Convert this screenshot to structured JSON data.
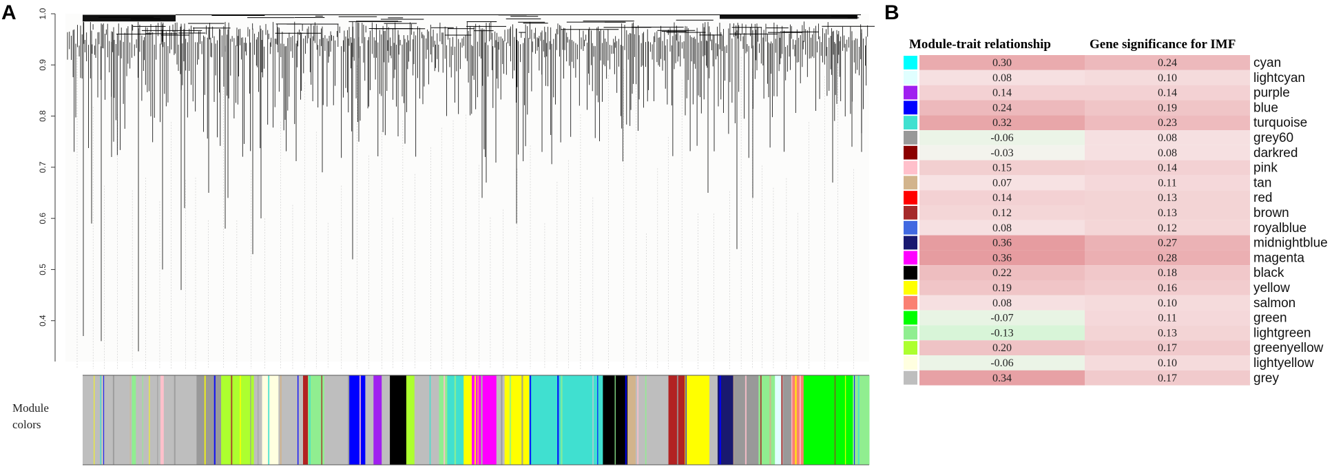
{
  "panels": {
    "a": "A",
    "b": "B"
  },
  "dendrogram": {
    "y_ticks": [
      "1.0",
      "0.9",
      "0.8",
      "0.7",
      "0.6",
      "0.5",
      "0.4"
    ],
    "y_tick_values": [
      1.0,
      0.9,
      0.8,
      0.7,
      0.6,
      0.5,
      0.4
    ],
    "ylim": [
      0.3,
      1.0
    ],
    "color_bar_label_line1": "Module",
    "color_bar_label_line2": "colors",
    "line_color": "#000000",
    "color_bar_segments": [
      {
        "color": "#bebebe",
        "weight": 6
      },
      {
        "color": "#90ee90",
        "weight": 0.5
      },
      {
        "color": "#bebebe",
        "weight": 3
      },
      {
        "color": "#ffc0cb",
        "weight": 0.4
      },
      {
        "color": "#bebebe",
        "weight": 4
      },
      {
        "color": "#999999",
        "weight": 3
      },
      {
        "color": "#adff2f",
        "weight": 4
      },
      {
        "color": "#bebebe",
        "weight": 1
      },
      {
        "color": "#ffffe0",
        "weight": 2
      },
      {
        "color": "#bebebe",
        "weight": 3
      },
      {
        "color": "#b22222",
        "weight": 0.6
      },
      {
        "color": "#90ee90",
        "weight": 2
      },
      {
        "color": "#bebebe",
        "weight": 3
      },
      {
        "color": "#0000ff",
        "weight": 2
      },
      {
        "color": "#bebebe",
        "weight": 1
      },
      {
        "color": "#a020f0",
        "weight": 1
      },
      {
        "color": "#bebebe",
        "weight": 1
      },
      {
        "color": "#000000",
        "weight": 2
      },
      {
        "color": "#adff2f",
        "weight": 1
      },
      {
        "color": "#bebebe",
        "weight": 3
      },
      {
        "color": "#90ee90",
        "weight": 1
      },
      {
        "color": "#40e0d0",
        "weight": 2
      },
      {
        "color": "#ffff00",
        "weight": 1
      },
      {
        "color": "#ff00ff",
        "weight": 3
      },
      {
        "color": "#bebebe",
        "weight": 1
      },
      {
        "color": "#ffff00",
        "weight": 3
      },
      {
        "color": "#40e0d0",
        "weight": 9
      },
      {
        "color": "#000000",
        "weight": 3
      },
      {
        "color": "#d2b48c",
        "weight": 1
      },
      {
        "color": "#bebebe",
        "weight": 4
      },
      {
        "color": "#b22222",
        "weight": 2
      },
      {
        "color": "#ffff00",
        "weight": 3
      },
      {
        "color": "#bebebe",
        "weight": 1
      },
      {
        "color": "#191970",
        "weight": 2
      },
      {
        "color": "#999999",
        "weight": 3
      },
      {
        "color": "#90ee90",
        "weight": 2
      },
      {
        "color": "#e0ffff",
        "weight": 1
      },
      {
        "color": "#999999",
        "weight": 1
      },
      {
        "color": "#fa8072",
        "weight": 1.5
      },
      {
        "color": "#00ff00",
        "weight": 6
      },
      {
        "color": "#90ee90",
        "weight": 2
      }
    ]
  },
  "chart_data": {
    "type": "heatmap",
    "columns": [
      "Module-trait relationship",
      "Gene significance for IMF"
    ],
    "rows": [
      {
        "swatch": "#00ffff",
        "module": "cyan",
        "values": [
          "0.30",
          "0.24"
        ]
      },
      {
        "swatch": "#e0ffff",
        "module": "lightcyan",
        "values": [
          "0.08",
          "0.10"
        ]
      },
      {
        "swatch": "#a020f0",
        "module": "purple",
        "values": [
          "0.14",
          "0.14"
        ]
      },
      {
        "swatch": "#0000ff",
        "module": "blue",
        "values": [
          "0.24",
          "0.19"
        ]
      },
      {
        "swatch": "#40e0d0",
        "module": "turquoise",
        "values": [
          "0.32",
          "0.23"
        ]
      },
      {
        "swatch": "#999999",
        "module": "grey60",
        "values": [
          "-0.06",
          "0.08"
        ]
      },
      {
        "swatch": "#8b0000",
        "module": "darkred",
        "values": [
          "-0.03",
          "0.08"
        ]
      },
      {
        "swatch": "#ffc0cb",
        "module": "pink",
        "values": [
          "0.15",
          "0.14"
        ]
      },
      {
        "swatch": "#d2b48c",
        "module": "tan",
        "values": [
          "0.07",
          "0.11"
        ]
      },
      {
        "swatch": "#ff0000",
        "module": "red",
        "values": [
          "0.14",
          "0.13"
        ]
      },
      {
        "swatch": "#a52a2a",
        "module": "brown",
        "values": [
          "0.12",
          "0.13"
        ]
      },
      {
        "swatch": "#4169e1",
        "module": "royalblue",
        "values": [
          "0.08",
          "0.12"
        ]
      },
      {
        "swatch": "#191970",
        "module": "midnightblue",
        "values": [
          "0.36",
          "0.27"
        ]
      },
      {
        "swatch": "#ff00ff",
        "module": "magenta",
        "values": [
          "0.36",
          "0.28"
        ]
      },
      {
        "swatch": "#000000",
        "module": "black",
        "values": [
          "0.22",
          "0.18"
        ]
      },
      {
        "swatch": "#ffff00",
        "module": "yellow",
        "values": [
          "0.19",
          "0.16"
        ]
      },
      {
        "swatch": "#fa8072",
        "module": "salmon",
        "values": [
          "0.08",
          "0.10"
        ]
      },
      {
        "swatch": "#00ff00",
        "module": "green",
        "values": [
          "-0.07",
          "0.11"
        ]
      },
      {
        "swatch": "#90ee90",
        "module": "lightgreen",
        "values": [
          "-0.13",
          "0.13"
        ]
      },
      {
        "swatch": "#adff2f",
        "module": "greenyellow",
        "values": [
          "0.20",
          "0.17"
        ]
      },
      {
        "swatch": "#ffffe0",
        "module": "lightyellow",
        "values": [
          "-0.06",
          "0.10"
        ]
      },
      {
        "swatch": "#bebebe",
        "module": "grey",
        "values": [
          "0.34",
          "0.17"
        ]
      }
    ],
    "positive_color": "#e69ca0",
    "negative_color": "#d8f5d8",
    "neutral_color": "#fbf3f3"
  }
}
